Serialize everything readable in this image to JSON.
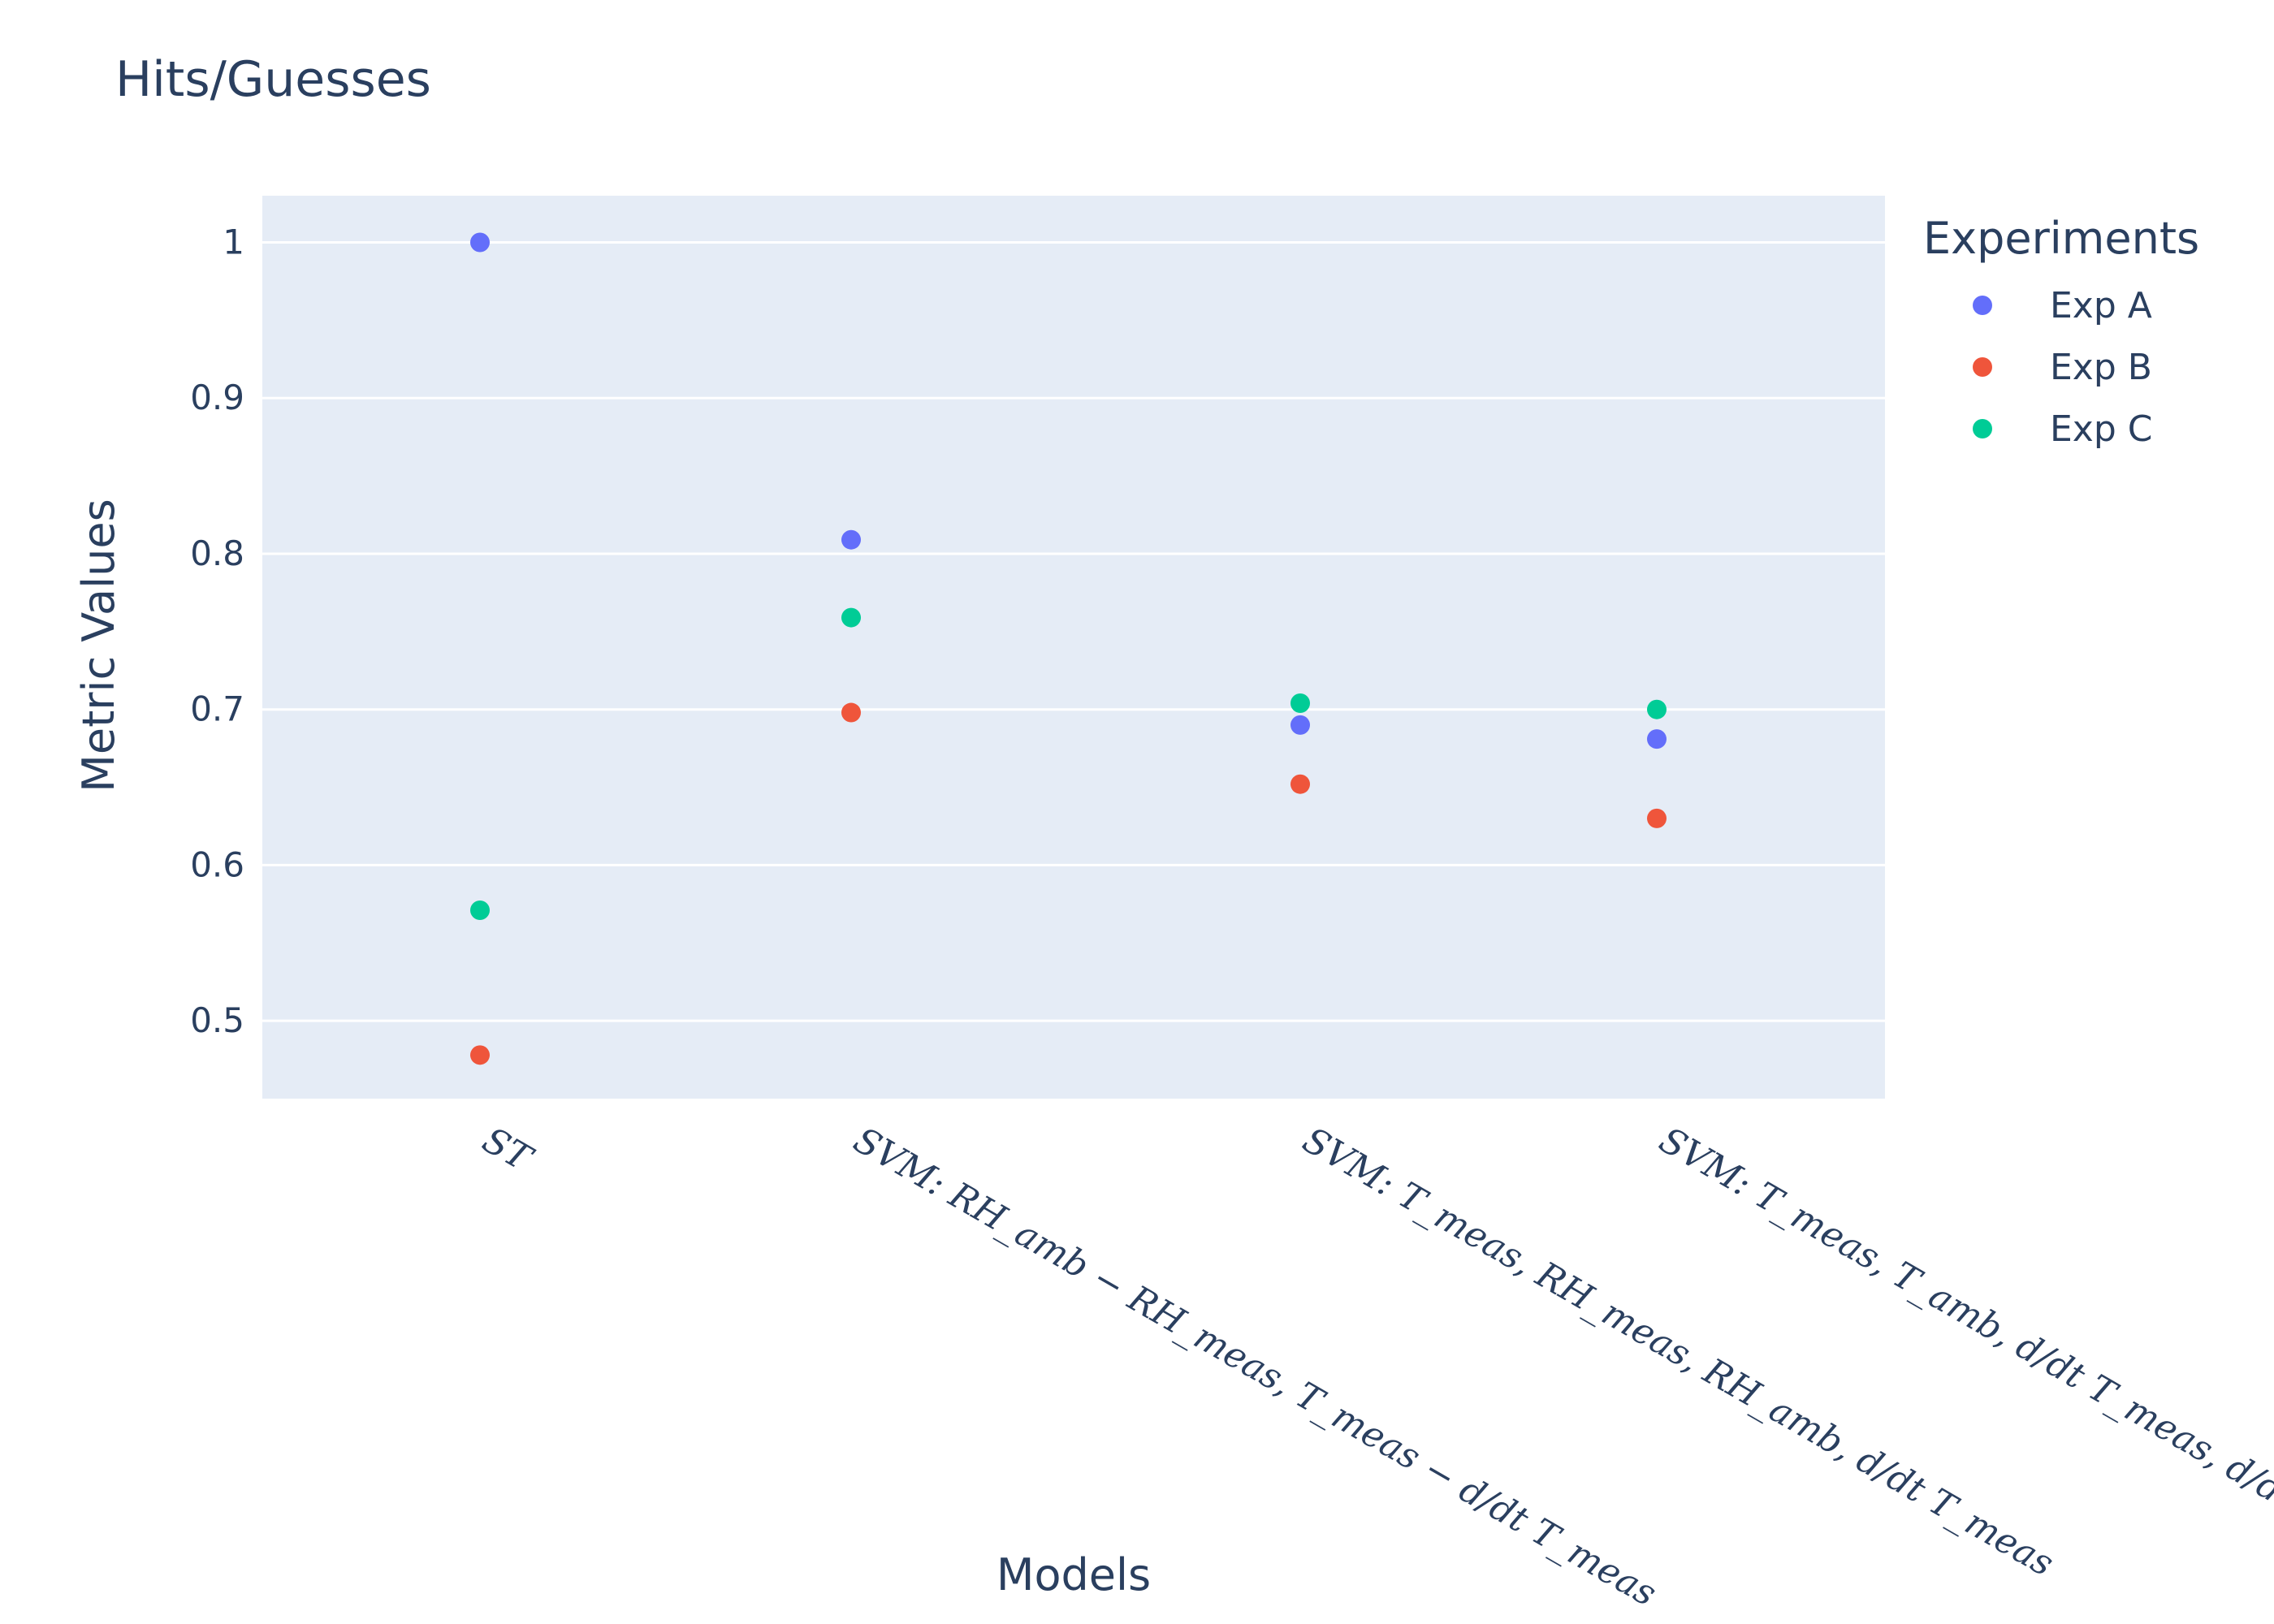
{
  "chart_data": {
    "type": "scatter",
    "title": "Hits/Guesses",
    "xlabel": "Models",
    "ylabel": "Metric Values",
    "categories": [
      "ST",
      "SVM: RH_amb − RH_meas, T_meas − d/dt T_meas",
      "SVM: T_meas, RH_meas, RH_amb, d/dt T_meas",
      "SVM: T_meas, T_amb, d/dt T_meas, d/dt RH_meas"
    ],
    "ylim": [
      0.45,
      1.03
    ],
    "yticks": [
      0.5,
      0.6,
      0.7,
      0.8,
      0.9,
      1
    ],
    "ytick_labels": [
      "0.5",
      "0.6",
      "0.7",
      "0.8",
      "0.9",
      "1"
    ],
    "grid": true,
    "legend": {
      "title": "Experiments",
      "position": "top-right"
    },
    "series": [
      {
        "name": "Exp A",
        "color": "#636efa",
        "values": [
          1.0,
          0.809,
          0.69,
          0.681
        ]
      },
      {
        "name": "Exp B",
        "color": "#ef553b",
        "values": [
          0.478,
          0.698,
          0.652,
          0.63
        ]
      },
      {
        "name": "Exp C",
        "color": "#00cc96",
        "values": [
          0.571,
          0.759,
          0.704,
          0.7
        ]
      }
    ],
    "plot_background": "#e5ecf6"
  }
}
